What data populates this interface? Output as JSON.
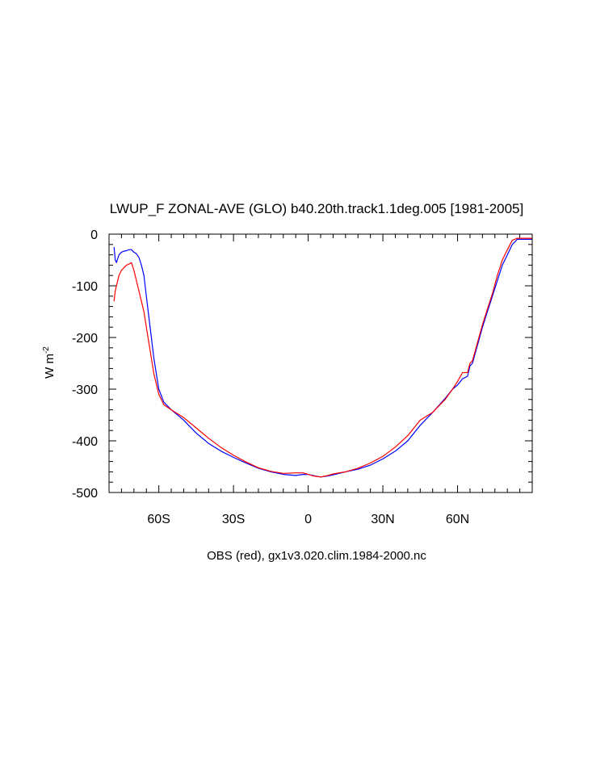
{
  "chart_data": {
    "type": "line",
    "title": "LWUP_F ZONAL-AVE (GLO) b40.20th.track1.1deg.005 [1981-2005]",
    "xlabel": "OBS (red), gx1v3.020.clim.1984-2000.nc",
    "ylabel_main": "W m",
    "ylabel_exponent": "-2",
    "xlim": [
      -80,
      90
    ],
    "ylim": [
      -500,
      0
    ],
    "x_ticks": [
      {
        "value": -60,
        "label": "60S"
      },
      {
        "value": -30,
        "label": "30S"
      },
      {
        "value": 0,
        "label": "0"
      },
      {
        "value": 30,
        "label": "30N"
      },
      {
        "value": 60,
        "label": "60N"
      }
    ],
    "y_ticks": [
      {
        "value": 0,
        "label": "0"
      },
      {
        "value": -100,
        "label": "-100"
      },
      {
        "value": -200,
        "label": "-200"
      },
      {
        "value": -300,
        "label": "-300"
      },
      {
        "value": -400,
        "label": "-400"
      },
      {
        "value": -500,
        "label": "-500"
      }
    ],
    "grid": false,
    "series": [
      {
        "color": "#0000ff",
        "x": [
          -78,
          -77.5,
          -77,
          -76,
          -75,
          -74,
          -73,
          -72,
          -71,
          -70,
          -69,
          -68,
          -67,
          -66,
          -65,
          -64,
          -63,
          -62,
          -60,
          -58,
          -55,
          -50,
          -45,
          -40,
          -35,
          -30,
          -25,
          -20,
          -15,
          -10,
          -5,
          -2,
          0,
          2,
          5,
          8,
          10,
          15,
          20,
          25,
          30,
          35,
          40,
          45,
          50,
          55,
          58,
          60,
          62,
          64,
          65,
          66,
          68,
          70,
          72,
          74,
          76,
          78,
          80,
          82,
          84,
          86,
          88,
          90
        ],
        "y": [
          -25,
          -50,
          -55,
          -40,
          -35,
          -33,
          -32,
          -30,
          -30,
          -35,
          -38,
          -45,
          -60,
          -80,
          -120,
          -160,
          -200,
          -240,
          -300,
          -325,
          -340,
          -360,
          -385,
          -405,
          -420,
          -432,
          -443,
          -453,
          -460,
          -465,
          -467,
          -465,
          -465,
          -467,
          -470,
          -468,
          -466,
          -460,
          -455,
          -447,
          -435,
          -420,
          -400,
          -370,
          -345,
          -318,
          -300,
          -292,
          -280,
          -275,
          -255,
          -250,
          -215,
          -180,
          -150,
          -120,
          -90,
          -60,
          -40,
          -20,
          -10,
          -10,
          -10,
          -10
        ]
      },
      {
        "color": "#ff0000",
        "x": [
          -78,
          -77.5,
          -77,
          -76,
          -75,
          -74,
          -73,
          -72,
          -71,
          -70,
          -69,
          -68,
          -67,
          -66,
          -65,
          -64,
          -63,
          -62,
          -60,
          -58,
          -55,
          -50,
          -45,
          -40,
          -35,
          -30,
          -25,
          -20,
          -15,
          -10,
          -5,
          -2,
          0,
          2,
          5,
          8,
          10,
          15,
          20,
          25,
          30,
          35,
          40,
          45,
          50,
          55,
          58,
          60,
          62,
          64,
          65,
          66,
          68,
          70,
          72,
          74,
          76,
          78,
          80,
          82,
          84,
          86,
          88,
          90
        ],
        "y": [
          -130,
          -110,
          -100,
          -80,
          -70,
          -65,
          -60,
          -58,
          -55,
          -70,
          -90,
          -110,
          -130,
          -150,
          -180,
          -210,
          -240,
          -270,
          -310,
          -330,
          -340,
          -355,
          -375,
          -395,
          -413,
          -428,
          -441,
          -452,
          -459,
          -463,
          -462,
          -462,
          -465,
          -468,
          -470,
          -467,
          -464,
          -460,
          -453,
          -443,
          -430,
          -412,
          -390,
          -360,
          -345,
          -320,
          -300,
          -285,
          -268,
          -268,
          -250,
          -245,
          -210,
          -175,
          -145,
          -115,
          -80,
          -50,
          -30,
          -12,
          -8,
          -8,
          -8,
          -8
        ]
      }
    ]
  }
}
